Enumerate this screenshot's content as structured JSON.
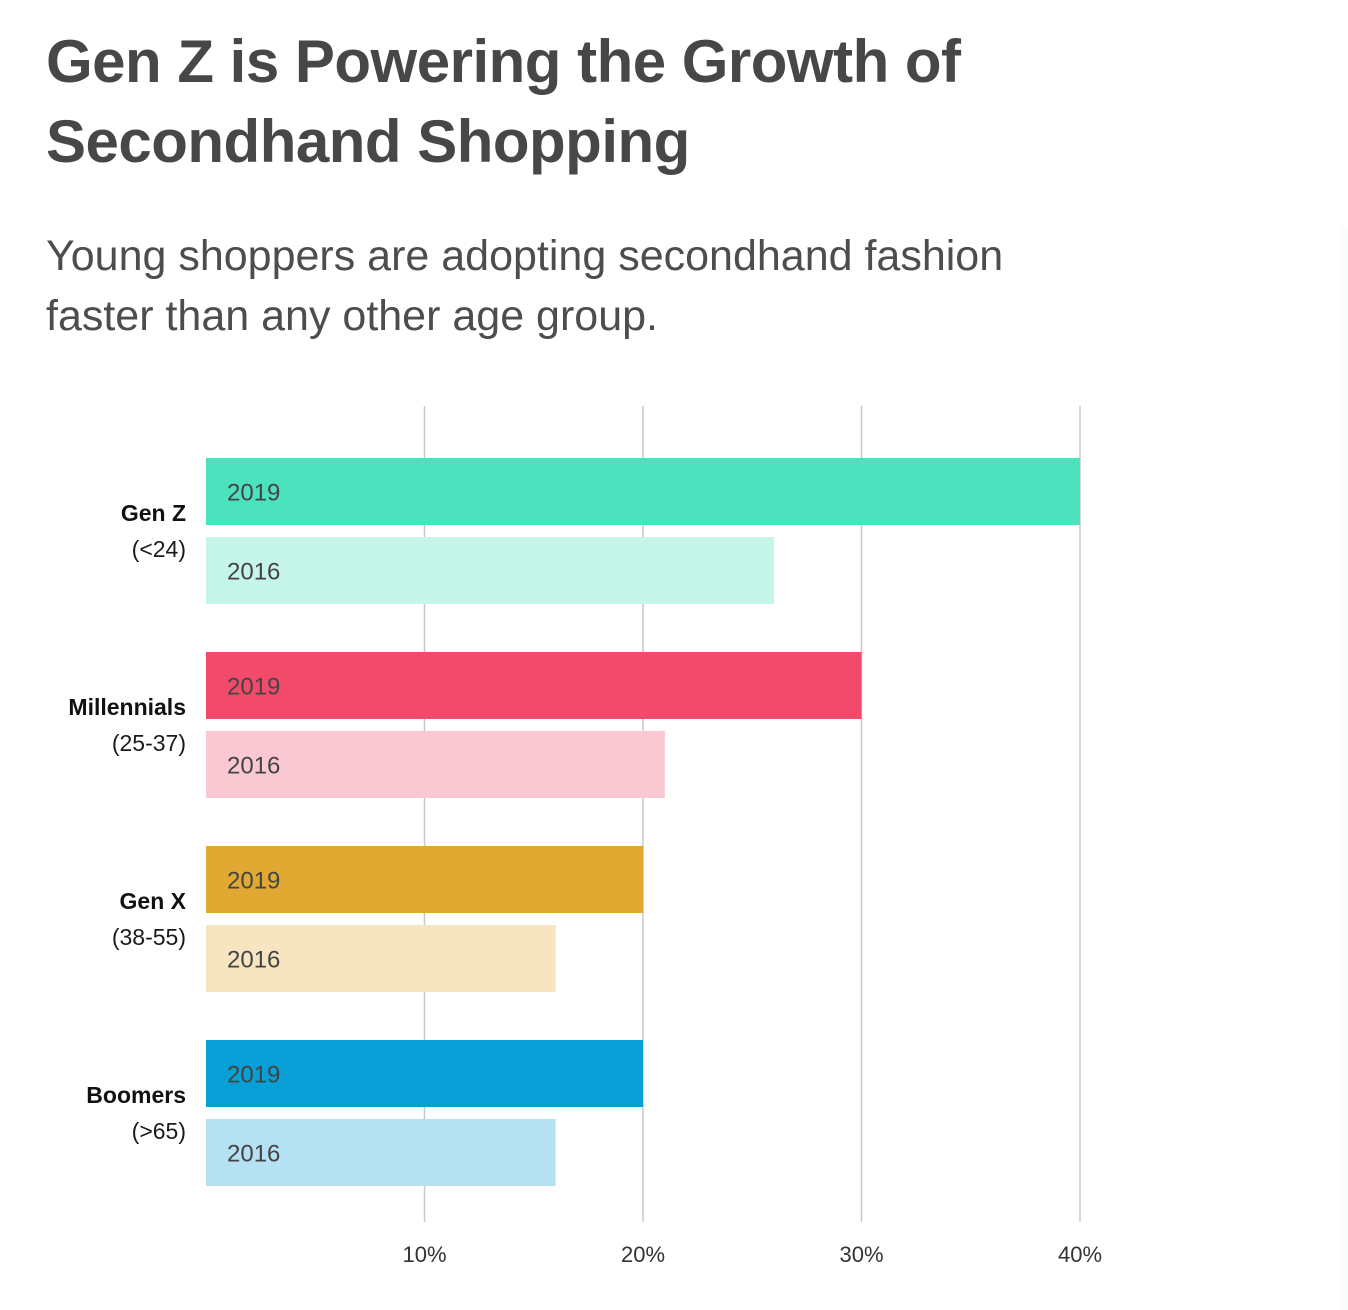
{
  "title_line1": "Gen Z is Powering the Growth of",
  "title_line2": "Secondhand Shopping",
  "subtitle_line1": "Young shoppers are adopting secondhand fashion",
  "subtitle_line2": "faster than any other age group.",
  "chart_data": {
    "type": "bar",
    "orientation": "horizontal",
    "title": "Gen Z is Powering the Growth of Secondhand Shopping",
    "subtitle": "Young shoppers are adopting secondhand fashion faster than any other age group.",
    "categories": [
      {
        "name": "Gen Z",
        "range": "(<24)"
      },
      {
        "name": "Millennials",
        "range": "(25-37)"
      },
      {
        "name": "Gen X",
        "range": "(38-55)"
      },
      {
        "name": "Boomers",
        "range": "(>65)"
      }
    ],
    "series": [
      {
        "name": "2019",
        "values": [
          40,
          30,
          20,
          20
        ],
        "colors": [
          "#4ce2bd",
          "#f24a6a",
          "#e2a932",
          "#089ed6"
        ]
      },
      {
        "name": "2016",
        "values": [
          26,
          21,
          16,
          16
        ],
        "colors": [
          "#c6f5e9",
          "#f9c8d3",
          "#f7e4c0",
          "#b5e1f2"
        ]
      }
    ],
    "x_ticks": [
      "10%",
      "20%",
      "30%",
      "40%"
    ],
    "x_tick_values": [
      10,
      20,
      30,
      40
    ],
    "xlim": [
      0,
      40
    ],
    "grid": true,
    "gridline_color": "#c8c8c8"
  }
}
